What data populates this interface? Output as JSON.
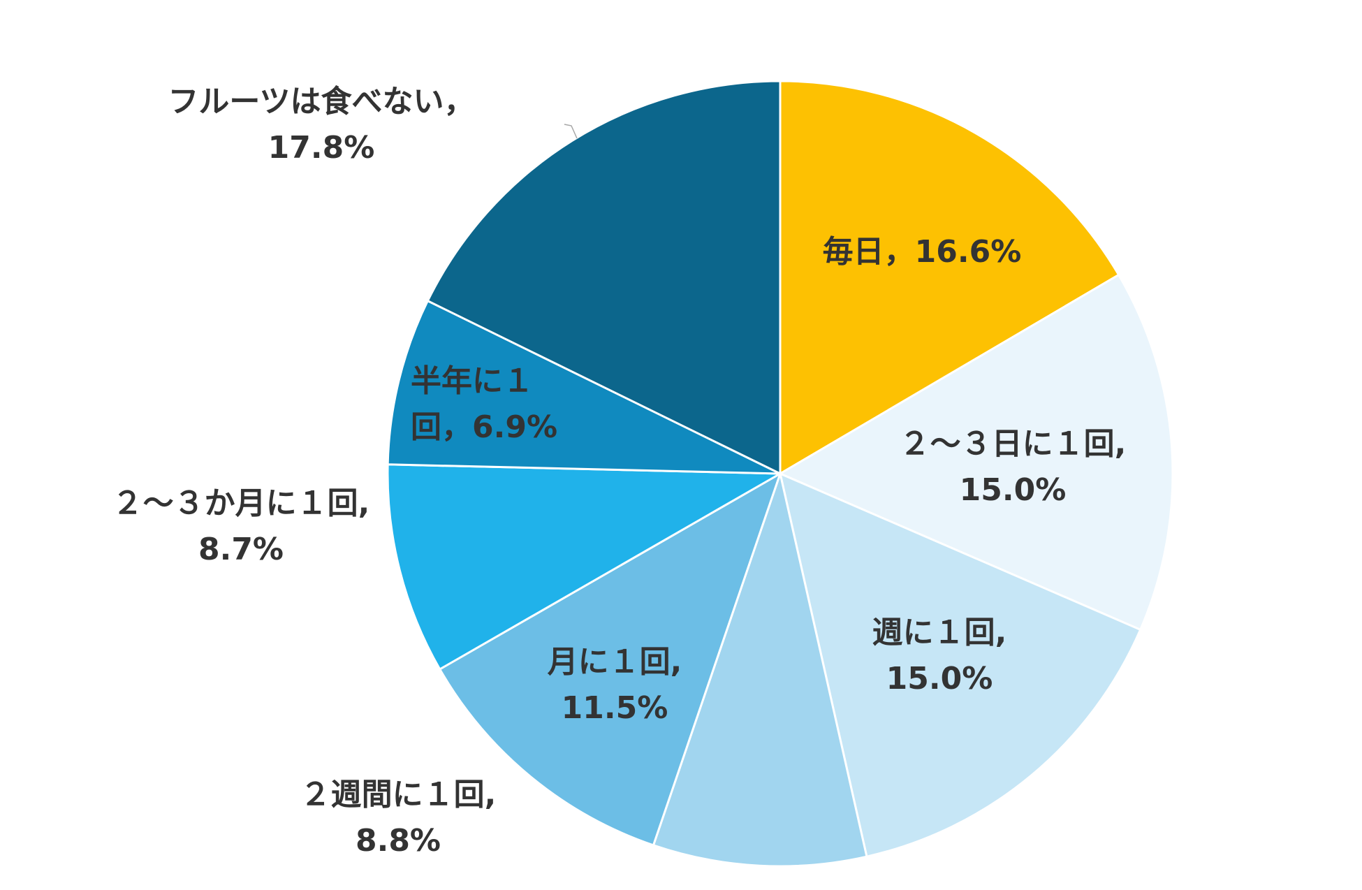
{
  "chart_data": {
    "type": "pie",
    "start": "12 o'clock, clockwise",
    "slices": [
      {
        "label": "毎日",
        "value": 16.6,
        "percent_label": "16.6%",
        "color": "#FDC102",
        "label_lines": [
          "毎日，16.6%"
        ]
      },
      {
        "label": "２～３日に１回",
        "value": 15.0,
        "percent_label": "15.0%",
        "color": "#EAF5FC",
        "label_lines": [
          "２～３日に１回,",
          "15.0%"
        ]
      },
      {
        "label": "週に１回",
        "value": 15.0,
        "percent_label": "15.0%",
        "color": "#C6E6F6",
        "label_lines": [
          "週に１回,",
          "15.0%"
        ]
      },
      {
        "label": "２週間に１回",
        "value": 8.8,
        "percent_label": "8.8%",
        "color": "#A1D5EF",
        "label_lines": [
          "２週間に１回,",
          "8.8%"
        ]
      },
      {
        "label": "月に１回",
        "value": 11.5,
        "percent_label": "11.5%",
        "color": "#6CBEE6",
        "label_lines": [
          "月に１回,",
          "11.5%"
        ]
      },
      {
        "label": "２～３か月に１回",
        "value": 8.7,
        "percent_label": "8.7%",
        "color": "#20B2EA",
        "label_lines": [
          "２～３か月に１回,",
          "8.7%"
        ]
      },
      {
        "label": "半年に１回",
        "value": 6.9,
        "percent_label": "6.9%",
        "color": "#108ABF",
        "label_lines": [
          "半年に１",
          "回，6.9%"
        ]
      },
      {
        "label": "フルーツは食べない",
        "value": 17.8,
        "percent_label": "17.8%",
        "color": "#0C668C",
        "label_lines": [
          "フルーツは食べない，",
          "17.8%"
        ]
      }
    ]
  }
}
